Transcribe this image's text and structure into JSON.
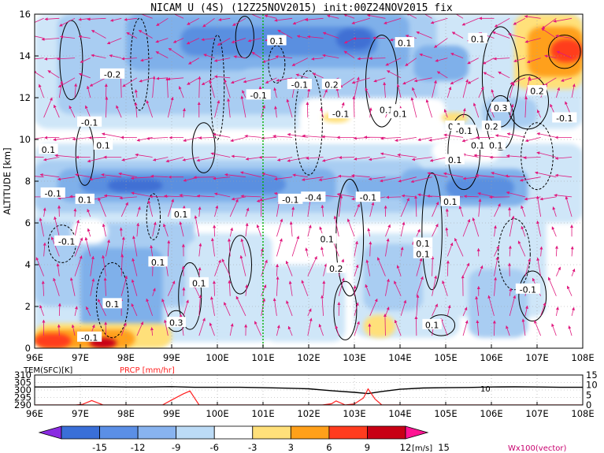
{
  "chart_data": [
    {
      "type": "heatmap",
      "title": "NICAM U (4S) (12Z25NOV2015) init:00Z24NOV2015 fix",
      "ylabel": "ALTITUDE [km]",
      "xlim": [
        96,
        108
      ],
      "ylim": [
        0,
        16
      ],
      "x_ticks": [
        "96E",
        "97E",
        "98E",
        "99E",
        "100E",
        "101E",
        "102E",
        "103E",
        "104E",
        "105E",
        "106E",
        "107E",
        "108E"
      ],
      "y_ticks": [
        "0",
        "2",
        "4",
        "6",
        "8",
        "10",
        "12",
        "14",
        "16"
      ],
      "grid": true,
      "highlight_line": {
        "x": 101,
        "color": "#00b000"
      },
      "contour_labels": [
        {
          "text": "0.1",
          "x": 101.3,
          "y": 14.7
        },
        {
          "text": "-0.2",
          "x": 97.7,
          "y": 13.1
        },
        {
          "text": "-0.1",
          "x": 100.9,
          "y": 12.1
        },
        {
          "text": "-0.1",
          "x": 97.2,
          "y": 10.8
        },
        {
          "text": "0.1",
          "x": 97.5,
          "y": 9.7
        },
        {
          "text": "0.1",
          "x": 96.3,
          "y": 9.5
        },
        {
          "text": "-0.1",
          "x": 96.4,
          "y": 7.4
        },
        {
          "text": "0.1",
          "x": 97.1,
          "y": 7.1
        },
        {
          "text": "-0.1",
          "x": 101.6,
          "y": 7.1
        },
        {
          "text": "0.1",
          "x": 99.2,
          "y": 6.4
        },
        {
          "text": "-0.1",
          "x": 96.7,
          "y": 5.1
        },
        {
          "text": "0.1",
          "x": 98.7,
          "y": 4.1
        },
        {
          "text": "0.1",
          "x": 99.6,
          "y": 3.1
        },
        {
          "text": "0.1",
          "x": 97.7,
          "y": 2.1
        },
        {
          "text": "0.1",
          "x": 104.5,
          "y": 4.5
        },
        {
          "text": "0.3",
          "x": 99.1,
          "y": 1.2
        },
        {
          "text": "-0.1",
          "x": 101.8,
          "y": 12.6
        },
        {
          "text": "0.2",
          "x": 102.5,
          "y": 12.6
        },
        {
          "text": "-0.1",
          "x": 102.7,
          "y": 11.2
        },
        {
          "text": "0.1",
          "x": 103.7,
          "y": 11.4
        },
        {
          "text": "0.1",
          "x": 104.0,
          "y": 11.2
        },
        {
          "text": "0.1",
          "x": 104.1,
          "y": 14.6
        },
        {
          "text": "0.1",
          "x": 105.7,
          "y": 14.8
        },
        {
          "text": "0.3",
          "x": 106.2,
          "y": 11.5
        },
        {
          "text": "0.2",
          "x": 106.0,
          "y": 10.6
        },
        {
          "text": "0.1",
          "x": 105.2,
          "y": 10.6
        },
        {
          "text": "0.1",
          "x": 105.2,
          "y": 9.0
        },
        {
          "text": "-0.1",
          "x": 107.6,
          "y": 11.0
        },
        {
          "text": "0.2",
          "x": 107.0,
          "y": 12.3
        },
        {
          "text": "0.1",
          "x": 106.1,
          "y": 9.7
        },
        {
          "text": "-0.1",
          "x": 105.4,
          "y": 10.4
        },
        {
          "text": "-0.4",
          "x": 102.1,
          "y": 7.2
        },
        {
          "text": "-0.1",
          "x": 103.3,
          "y": 7.2
        },
        {
          "text": "0.1",
          "x": 104.5,
          "y": 5.0
        },
        {
          "text": "0.1",
          "x": 105.1,
          "y": 7.0
        },
        {
          "text": "0.1",
          "x": 102.4,
          "y": 5.2
        },
        {
          "text": "0.2",
          "x": 102.6,
          "y": 3.8
        },
        {
          "text": "-0.1",
          "x": 106.8,
          "y": 2.8
        },
        {
          "text": "0.1",
          "x": 104.7,
          "y": 1.1
        },
        {
          "text": "-0.1",
          "x": 97.2,
          "y": 0.5
        },
        {
          "text": "0.1",
          "x": 105.7,
          "y": 9.7
        }
      ]
    },
    {
      "type": "line",
      "labels": [
        "TEM(SFC)[K]",
        "PRCP [mm/hr]"
      ],
      "xlim": [
        96,
        108
      ],
      "tem_ylim": [
        290,
        310
      ],
      "tem_ticks": [
        "310",
        "305",
        "300",
        "295",
        "290"
      ],
      "prcp_ylim": [
        0,
        15
      ],
      "prcp_ticks": [
        "15",
        "10",
        "5",
        "0"
      ],
      "annotation": {
        "text": "10",
        "x": 106.0
      },
      "series": [
        {
          "name": "TEM(SFC)[K]",
          "color": "#000000",
          "x": [
            96,
            96.5,
            97,
            97.5,
            98,
            98.5,
            99,
            99.5,
            100,
            100.5,
            101,
            101.5,
            102,
            102.5,
            103,
            103.3,
            103.6,
            104,
            104.5,
            105,
            105.5,
            106,
            106.5,
            107,
            107.5,
            108
          ],
          "values": [
            302.0,
            302.0,
            302.2,
            302.2,
            302.0,
            302.0,
            302.2,
            301.8,
            301.8,
            301.8,
            301.5,
            301.2,
            300.8,
            299.5,
            298.4,
            297.6,
            299.0,
            300.5,
            301.3,
            301.5,
            301.7,
            302.0,
            302.1,
            302.0,
            301.8,
            301.8
          ]
        },
        {
          "name": "PRCP [mm/hr]",
          "color": "#ff2020",
          "x": [
            96,
            96.9,
            97.05,
            97.25,
            97.5,
            98,
            98.8,
            99.0,
            99.25,
            99.4,
            99.6,
            100,
            101,
            102,
            102.3,
            102.5,
            102.6,
            102.8,
            103,
            103.2,
            103.3,
            103.45,
            103.6,
            104,
            105,
            106,
            107,
            108
          ],
          "values": [
            0,
            0,
            0.3,
            2.2,
            0,
            0,
            0,
            2.5,
            5.5,
            7.0,
            0,
            0,
            0,
            0,
            0,
            0.6,
            2.0,
            0,
            0.5,
            3.5,
            8.0,
            3.0,
            0,
            0,
            0,
            0,
            0,
            0
          ]
        }
      ]
    },
    {
      "type": "colorbar",
      "tick_labels": [
        "-15",
        "-12",
        "-9",
        "-6",
        "-3",
        "3",
        "6",
        "9",
        "12",
        "15"
      ],
      "unit": "[m/s]",
      "colors": [
        "#8a2be2",
        "#3a6fd8",
        "#5b8fe6",
        "#88b3ef",
        "#bcdbf6",
        "#ffffff",
        "#ffe07a",
        "#ffa01a",
        "#ff3c1e",
        "#c80014",
        "#ff1493"
      ],
      "vector_label": "Wx100(vector)"
    }
  ]
}
